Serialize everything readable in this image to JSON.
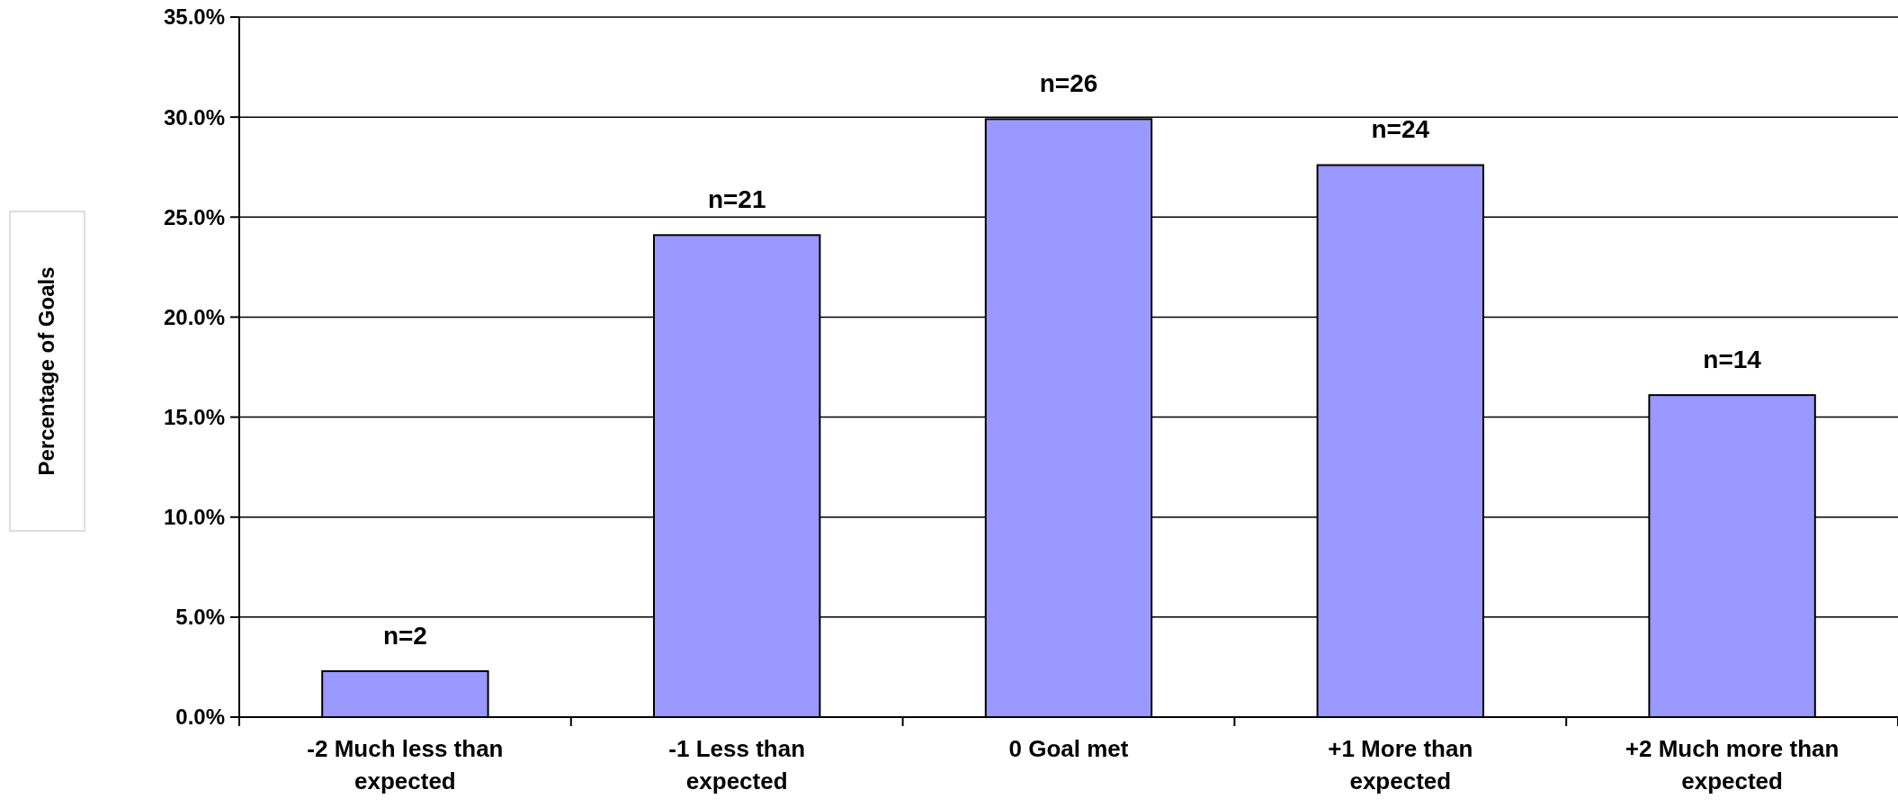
{
  "chart_data": {
    "type": "bar",
    "ylabel": "Percentage of Goals",
    "categories": [
      "-2 Much less than expected",
      "-1 Less than expected",
      "0 Goal met",
      "+1 More than expected",
      "+2 Much more than expected"
    ],
    "values": [
      2.3,
      24.1,
      29.9,
      27.6,
      16.1
    ],
    "annotations": [
      {
        "text": "n=2",
        "x": "-2 Much less than expected",
        "y": 2.3
      },
      {
        "text": "n=21",
        "x": "-1 Less than expected",
        "y": 24.1
      },
      {
        "text": "n=26",
        "x": "0 Goal met",
        "y": 29.9
      },
      {
        "text": "n=24",
        "x": "+1 More than expected",
        "y": 27.6
      },
      {
        "text": "n=14",
        "x": "+2 Much more than expected",
        "y": 16.1
      }
    ],
    "color": "#9999ff",
    "ylim": [
      0,
      35
    ],
    "yticks": [
      {
        "value": 0,
        "label": "0.0%"
      },
      {
        "value": 5,
        "label": "5.0%"
      },
      {
        "value": 10,
        "label": "10.0%"
      },
      {
        "value": 15,
        "label": "15.0%"
      },
      {
        "value": 20,
        "label": "20.0%"
      },
      {
        "value": 25,
        "label": "25.0%"
      },
      {
        "value": 30,
        "label": "30.0%"
      },
      {
        "value": 35,
        "label": "35.0%"
      }
    ],
    "grid": "y"
  }
}
